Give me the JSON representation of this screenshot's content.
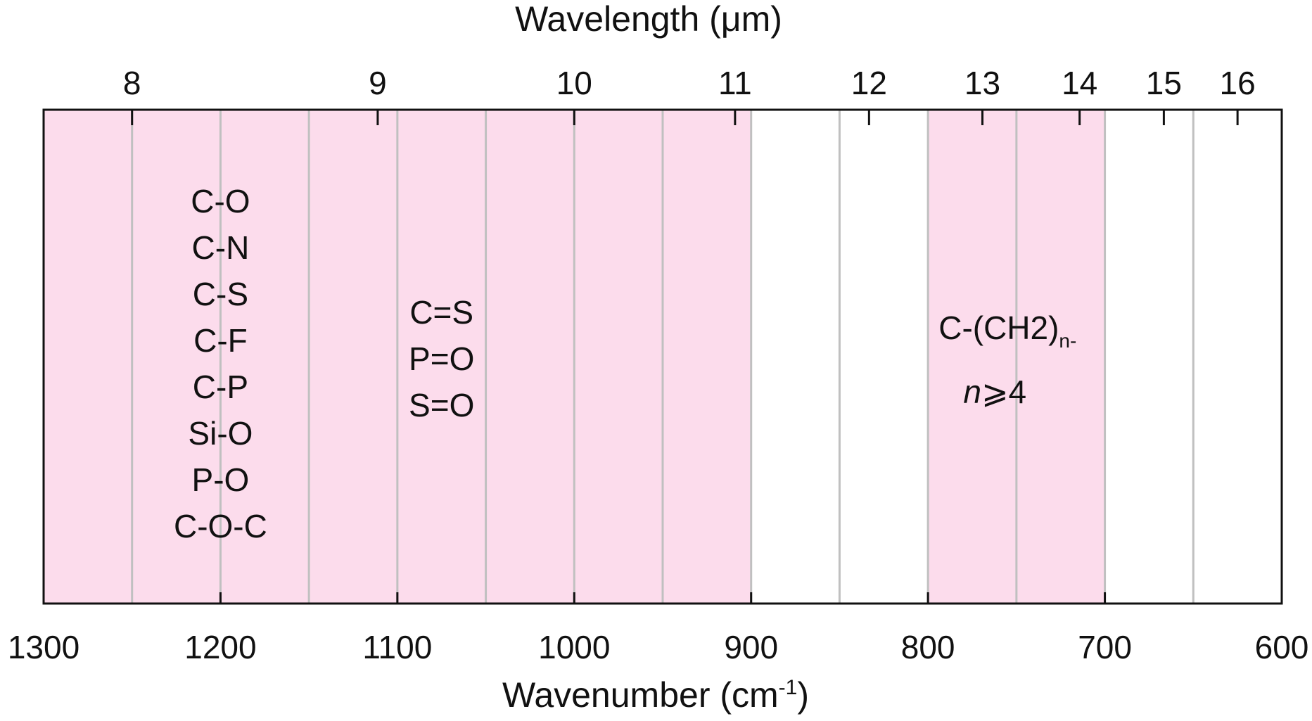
{
  "chart_data": {
    "type": "band-annotation",
    "x_bottom": {
      "label": "Wavenumber (cm",
      "label_sup": "-1",
      "label_tail": ")",
      "range": [
        1300,
        600
      ],
      "ticks": [
        1300,
        1200,
        1100,
        1000,
        900,
        800,
        700,
        600
      ]
    },
    "x_top": {
      "label": "Wavelength (μm)",
      "ticks": [
        8,
        9,
        10,
        11,
        12,
        13,
        14,
        15,
        16
      ]
    },
    "gridlines_cm": [
      1250,
      1200,
      1150,
      1100,
      1050,
      1000,
      950,
      900,
      850,
      800,
      750,
      700,
      650
    ],
    "shaded_regions": [
      {
        "from": 1300,
        "to": 900
      },
      {
        "from": 800,
        "to": 700
      }
    ],
    "band_labels": [
      {
        "x": 1200,
        "lines": [
          "C-O",
          "C-N",
          "C-S",
          "C-F",
          "C-P",
          "Si-O",
          "P-O",
          "C-O-C"
        ]
      },
      {
        "x": 1075,
        "lines": [
          "C=S",
          "P=O",
          "S=O"
        ]
      },
      {
        "x": 755,
        "main": "C-(CH2)",
        "sub": "n-",
        "line2_italic": "n",
        "line2_rest": "⩾4"
      }
    ],
    "colors": {
      "shade": "#fcdcec",
      "grid": "#c0c0c0",
      "frame": "#111111"
    }
  }
}
